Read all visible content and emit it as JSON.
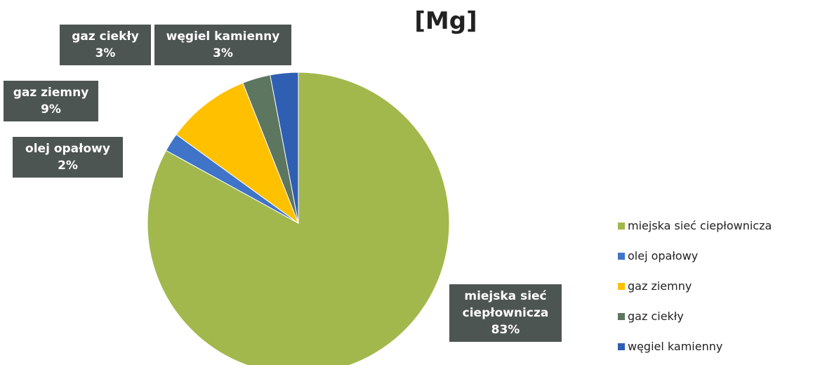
{
  "chart_data": {
    "type": "pie",
    "title": "[Mg]",
    "categories": [
      "miejska sieć ciepłownicza",
      "olej opałowy",
      "gaz ziemny",
      "gaz ciekły",
      "węgiel kamienny"
    ],
    "values": [
      83,
      2,
      9,
      3,
      3
    ],
    "value_labels": [
      "83%",
      "2%",
      "9%",
      "3%",
      "3%"
    ],
    "colors": [
      "#a2b84c",
      "#3f74c8",
      "#ffc000",
      "#5d7660",
      "#2f5fb3"
    ],
    "legend": "right"
  }
}
